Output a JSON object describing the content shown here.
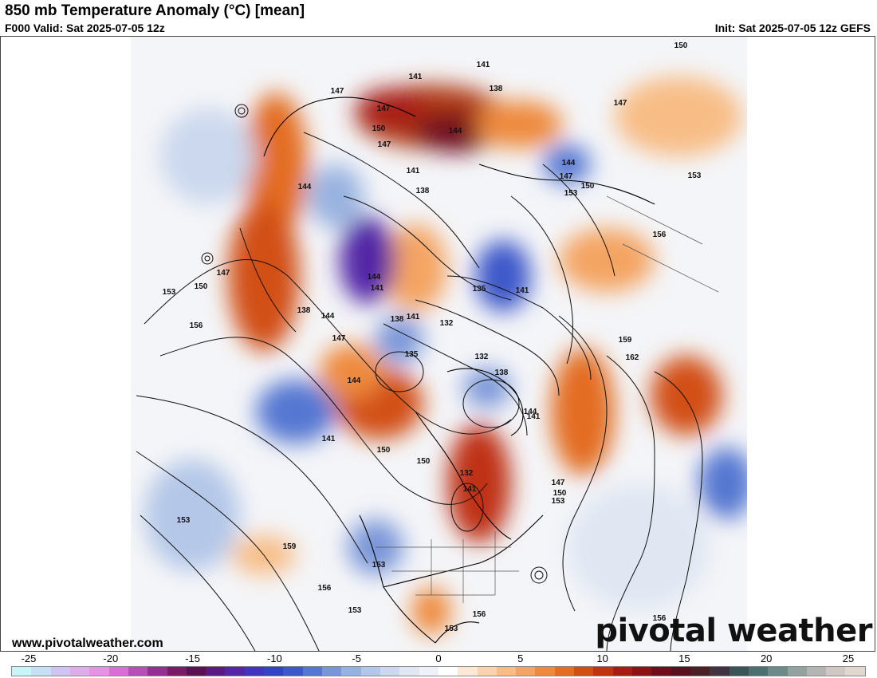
{
  "header": {
    "title": "850 mb Temperature Anomaly (°C) [mean]",
    "valid": "F000 Valid: Sat 2025-07-05 12z",
    "init": "Init: Sat 2025-07-05 12z GEFS"
  },
  "footer": {
    "website": "www.pivotalweather.com",
    "brand": "pivotal weather"
  },
  "colorbar": {
    "tick_labels": [
      "-25",
      "-20",
      "-15",
      "-10",
      "-5",
      "0",
      "5",
      "10",
      "15",
      "20",
      "25"
    ],
    "colors": [
      "#c9f5f7",
      "#c7dff5",
      "#cfc3ef",
      "#dcaee9",
      "#e493e2",
      "#d76fd4",
      "#b94eb5",
      "#94308f",
      "#7a1b67",
      "#5b1350",
      "#5a1a80",
      "#5227a6",
      "#4135bf",
      "#3343c4",
      "#3d58c9",
      "#5577d1",
      "#7a96d8",
      "#98b2e0",
      "#b4c7e8",
      "#cbd8ee",
      "#e0e7f3",
      "#eef1f6",
      "#ffffff",
      "#fbe8d6",
      "#fad2ae",
      "#f8bd86",
      "#f4a462",
      "#ee8a3d",
      "#e36d20",
      "#d24f12",
      "#bf3212",
      "#a71c14",
      "#8c1218",
      "#6f0d1c",
      "#57101e",
      "#4a2026",
      "#3f3340",
      "#3c5357",
      "#4c7070",
      "#6e8a88",
      "#93a29f",
      "#b4b5b2",
      "#cfc8c2",
      "#e2d7cf"
    ]
  },
  "map": {
    "contour_labels": [
      "150",
      "141",
      "141",
      "147",
      "138",
      "147",
      "147",
      "150",
      "147",
      "144",
      "144",
      "141",
      "147",
      "144",
      "153",
      "150",
      "153",
      "138",
      "141",
      "144",
      "156",
      "147",
      "153",
      "150",
      "156",
      "138",
      "141",
      "144",
      "135",
      "141",
      "144",
      "138",
      "141",
      "147",
      "132",
      "135",
      "132",
      "138",
      "159",
      "162",
      "144",
      "141",
      "150",
      "150",
      "132",
      "141",
      "147",
      "150",
      "153",
      "153",
      "159",
      "153",
      "156",
      "153",
      "156",
      "153",
      "156"
    ]
  }
}
